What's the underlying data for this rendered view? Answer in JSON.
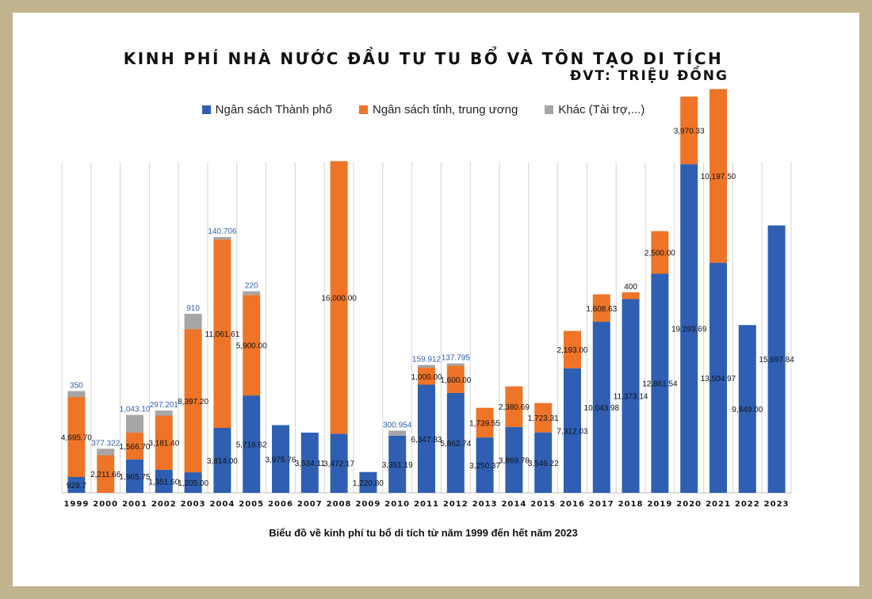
{
  "chart_data": {
    "type": "bar",
    "stacked": true,
    "title": "KINH PHÍ NHÀ NƯỚC ĐẦU TƯ TU BỔ VÀ TÔN TẠO DI TÍCH",
    "unit_label": "ĐVT: TRIỆU ĐỒNG",
    "caption": "Biểu đồ về kinh phí tu bổ di tích từ năm 1999 đến hết năm 2023",
    "legend_position": "top",
    "grid": "vertical category separators",
    "categories": [
      "1999",
      "2000",
      "2001",
      "2002",
      "2003",
      "2004",
      "2005",
      "2006",
      "2007",
      "2008",
      "2009",
      "2010",
      "2011",
      "2012",
      "2013",
      "2014",
      "2015",
      "2016",
      "2017",
      "2018",
      "2019",
      "2020",
      "2021",
      "2022",
      "2023"
    ],
    "series": [
      {
        "name": "Ngân sách Thành phố",
        "color": "#2f5fb3",
        "values": [
          929.7,
          null,
          1965.75,
          1351.6,
          1205.0,
          3814.0,
          5716.62,
          3975.76,
          3534.11,
          3472.17,
          1220.8,
          3351.19,
          6347.83,
          5862.74,
          3250.37,
          3869.78,
          3546.22,
          7312.03,
          10043.98,
          11373.14,
          12861.54,
          19293.69,
          13504.97,
          9849.0,
          15697.84
        ],
        "labels": [
          "929.7",
          "",
          "1,965.75",
          "1,351.60",
          "1,205.00",
          "3,814.00",
          "5,716.62",
          "3,975.76",
          "3,534.11",
          "3,472.17",
          "1,220.80",
          "3,351.19",
          "6,347.83",
          "5,862.74",
          "3,250.37",
          "3,869.78",
          "3,546.22",
          "7,312.03",
          "10,043.98",
          "11,373.14",
          "12,861.54",
          "19,293.69",
          "13,504.97",
          "9,849.00",
          "15,697.84"
        ]
      },
      {
        "name": "Ngân sách tỉnh, trung ương",
        "color": "#ee7427",
        "values": [
          4695.7,
          2211.66,
          1566.7,
          3181.4,
          8397.2,
          11061.61,
          5900.0,
          null,
          null,
          16000.0,
          null,
          null,
          1000.0,
          1600.0,
          1739.55,
          2380.69,
          1723.31,
          2193.0,
          1608.63,
          400,
          2500.0,
          3970.33,
          10197.5,
          null,
          null
        ],
        "labels": [
          "4,695.70",
          "2,211.66",
          "1,566.70",
          "3,181.40",
          "8,397.20",
          "11,061.61",
          "5,900.00",
          "",
          "",
          "16,000.00",
          "",
          "",
          "1,000.00",
          "1,600.00",
          "1,739.55",
          "2,380.69",
          "1,723.31",
          "2,193.00",
          "1,608.63",
          "400",
          "2,500.00",
          "3,970.33",
          "10,197.50",
          "",
          ""
        ]
      },
      {
        "name": "Khác (Tài trợ,...)",
        "color": "#a6a6a6",
        "values": [
          350,
          377.322,
          1043.1,
          297.201,
          910,
          140.706,
          220,
          null,
          null,
          null,
          null,
          300.954,
          159.912,
          137.795,
          null,
          null,
          null,
          null,
          null,
          null,
          null,
          null,
          null,
          null,
          null
        ],
        "labels": [
          "350",
          "377.322",
          "1,043.10",
          "297.201",
          "910",
          "140.706",
          "220",
          "",
          "",
          "",
          "",
          "300.954",
          "159.912",
          "137.795",
          "",
          "",
          "",
          "",
          "",
          "",
          "",
          "",
          "",
          "",
          ""
        ]
      }
    ]
  }
}
